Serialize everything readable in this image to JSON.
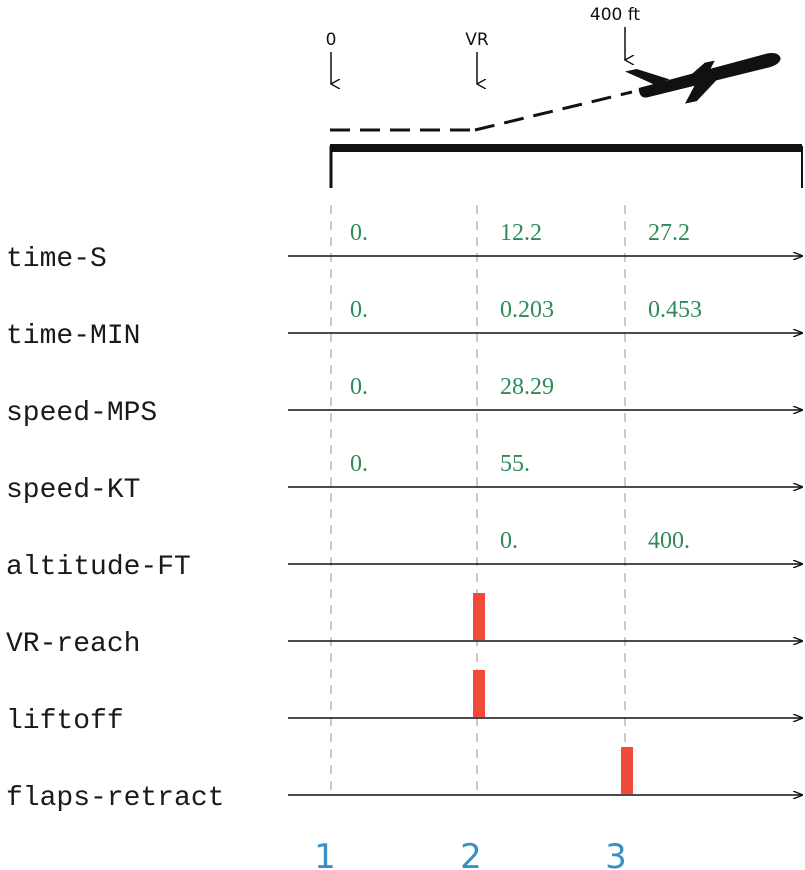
{
  "colors": {
    "value_text": "#2e8b57",
    "event_bar": "#f04a3a",
    "stage_number": "#3a8fc4",
    "guide_line": "#b4b4b4",
    "axis": "#111111"
  },
  "top_markers": [
    {
      "label": "0",
      "icon": "down-arrow"
    },
    {
      "label": "VR",
      "icon": "down-arrow"
    },
    {
      "label": "400 ft",
      "icon": "down-arrow"
    }
  ],
  "aircraft_icon": "airplane-climbing",
  "rows": [
    {
      "name": "time-S",
      "values": [
        "0.",
        "12.2",
        "27.2"
      ],
      "events": [
        false,
        false,
        false
      ]
    },
    {
      "name": "time-MIN",
      "values": [
        "0.",
        "0.203",
        "0.453"
      ],
      "events": [
        false,
        false,
        false
      ]
    },
    {
      "name": "speed-MPS",
      "values": [
        "0.",
        "28.29",
        ""
      ],
      "events": [
        false,
        false,
        false
      ]
    },
    {
      "name": "speed-KT",
      "values": [
        "0.",
        "55.",
        ""
      ],
      "events": [
        false,
        false,
        false
      ]
    },
    {
      "name": "altitude-FT",
      "values": [
        "",
        "0.",
        "400."
      ],
      "events": [
        false,
        false,
        false
      ]
    },
    {
      "name": "VR-reach",
      "values": [
        "",
        "",
        ""
      ],
      "events": [
        false,
        true,
        false
      ]
    },
    {
      "name": "liftoff",
      "values": [
        "",
        "",
        ""
      ],
      "events": [
        false,
        true,
        false
      ]
    },
    {
      "name": "flaps-retract",
      "values": [
        "",
        "",
        ""
      ],
      "events": [
        false,
        false,
        true
      ]
    }
  ],
  "stages": [
    "1",
    "2",
    "3"
  ]
}
